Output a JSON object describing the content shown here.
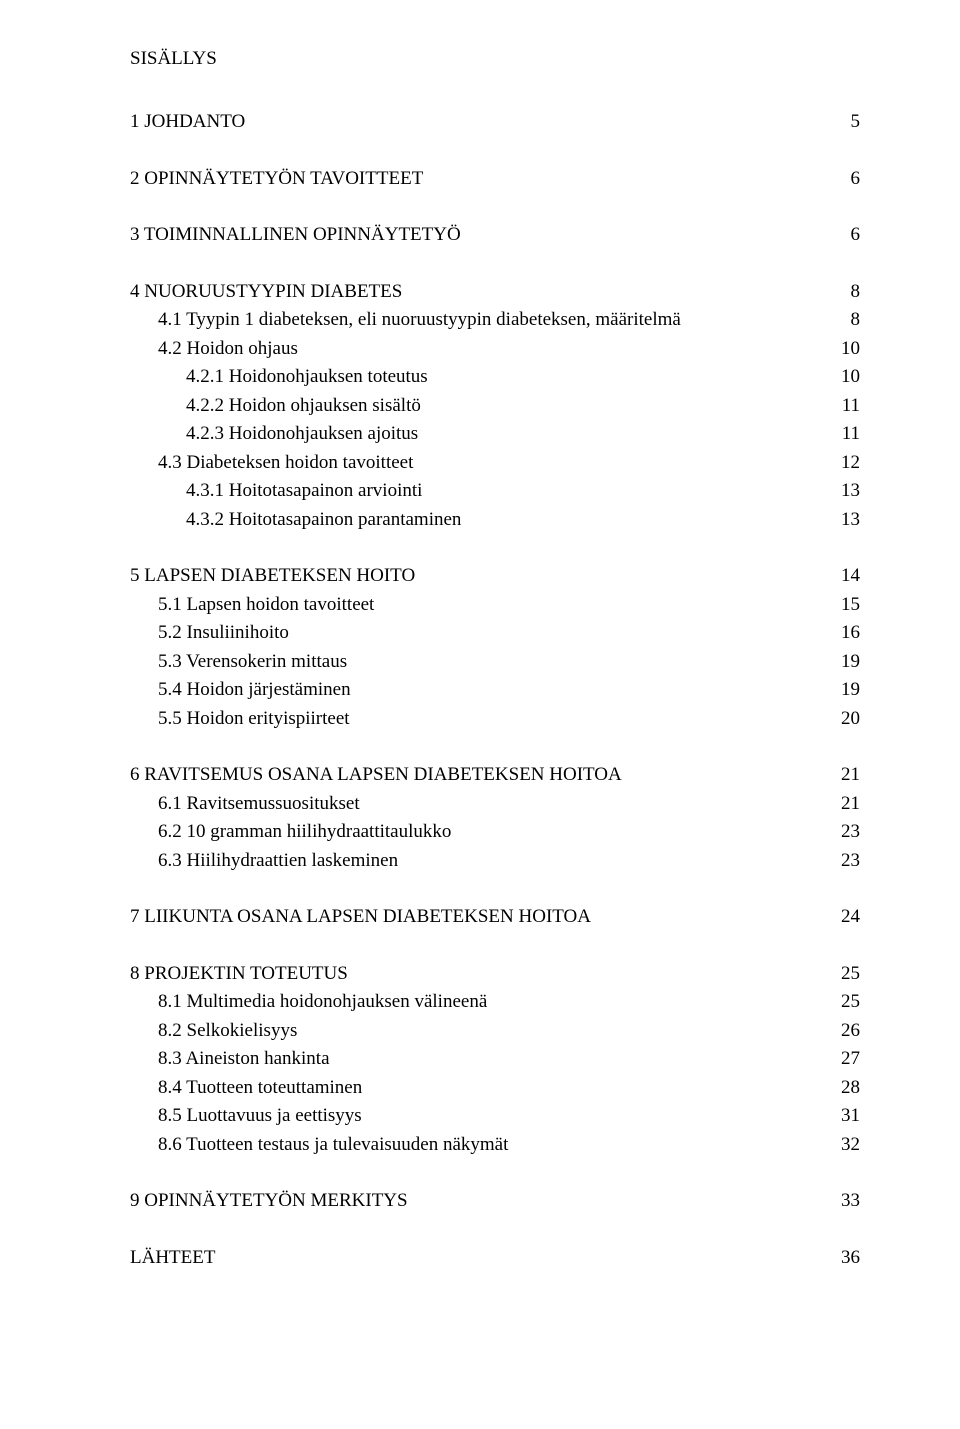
{
  "fontsize_pt": 19,
  "title": "SISÄLLYS",
  "toc": [
    {
      "label": "1 JOHDANTO",
      "page": "5",
      "indent": 0,
      "gap_before": false
    },
    {
      "label": "2 OPINNÄYTETYÖN TAVOITTEET",
      "page": "6",
      "indent": 0,
      "gap_before": true
    },
    {
      "label": "3 TOIMINNALLINEN OPINNÄYTETYÖ",
      "page": "6",
      "indent": 0,
      "gap_before": true
    },
    {
      "label": "4 NUORUUSTYYPIN DIABETES",
      "page": "8",
      "indent": 0,
      "gap_before": true
    },
    {
      "label": "4.1 Tyypin 1 diabeteksen, eli nuoruustyypin diabeteksen, määritelmä",
      "page": "8",
      "indent": 1,
      "gap_before": false
    },
    {
      "label": "4.2 Hoidon ohjaus",
      "page": "10",
      "indent": 1,
      "gap_before": false
    },
    {
      "label": "4.2.1 Hoidonohjauksen toteutus",
      "page": "10",
      "indent": 2,
      "gap_before": false
    },
    {
      "label": "4.2.2 Hoidon ohjauksen sisältö",
      "page": "11",
      "indent": 2,
      "gap_before": false
    },
    {
      "label": "4.2.3 Hoidonohjauksen ajoitus",
      "page": "11",
      "indent": 2,
      "gap_before": false
    },
    {
      "label": "4.3 Diabeteksen hoidon tavoitteet",
      "page": "12",
      "indent": 1,
      "gap_before": false
    },
    {
      "label": "4.3.1 Hoitotasapainon arviointi",
      "page": "13",
      "indent": 2,
      "gap_before": false
    },
    {
      "label": "4.3.2 Hoitotasapainon parantaminen",
      "page": "13",
      "indent": 2,
      "gap_before": false
    },
    {
      "label": "5 LAPSEN DIABETEKSEN HOITO",
      "page": "14",
      "indent": 0,
      "gap_before": true
    },
    {
      "label": "5.1 Lapsen hoidon tavoitteet",
      "page": "15",
      "indent": 1,
      "gap_before": false
    },
    {
      "label": "5.2 Insuliinihoito",
      "page": "16",
      "indent": 1,
      "gap_before": false
    },
    {
      "label": "5.3 Verensokerin mittaus",
      "page": "19",
      "indent": 1,
      "gap_before": false
    },
    {
      "label": "5.4 Hoidon järjestäminen",
      "page": "19",
      "indent": 1,
      "gap_before": false
    },
    {
      "label": "5.5 Hoidon erityispiirteet",
      "page": "20",
      "indent": 1,
      "gap_before": false
    },
    {
      "label": "6 RAVITSEMUS OSANA LAPSEN DIABETEKSEN HOITOA",
      "page": "21",
      "indent": 0,
      "gap_before": true
    },
    {
      "label": "6.1 Ravitsemussuositukset",
      "page": "21",
      "indent": 1,
      "gap_before": false
    },
    {
      "label": "6.2 10 gramman hiilihydraattitaulukko",
      "page": "23",
      "indent": 1,
      "gap_before": false
    },
    {
      "label": "6.3 Hiilihydraattien laskeminen",
      "page": "23",
      "indent": 1,
      "gap_before": false
    },
    {
      "label": "7 LIIKUNTA OSANA LAPSEN DIABETEKSEN HOITOA",
      "page": "24",
      "indent": 0,
      "gap_before": true
    },
    {
      "label": "8 PROJEKTIN TOTEUTUS",
      "page": "25",
      "indent": 0,
      "gap_before": true
    },
    {
      "label": "8.1 Multimedia hoidonohjauksen välineenä",
      "page": "25",
      "indent": 1,
      "gap_before": false
    },
    {
      "label": "8.2 Selkokielisyys",
      "page": "26",
      "indent": 1,
      "gap_before": false
    },
    {
      "label": "8.3 Aineiston hankinta",
      "page": "27",
      "indent": 1,
      "gap_before": false
    },
    {
      "label": "8.4 Tuotteen toteuttaminen",
      "page": "28",
      "indent": 1,
      "gap_before": false
    },
    {
      "label": "8.5 Luottavuus ja eettisyys",
      "page": "31",
      "indent": 1,
      "gap_before": false
    },
    {
      "label": "8.6 Tuotteen testaus ja tulevaisuuden näkymät",
      "page": "32",
      "indent": 1,
      "gap_before": false
    },
    {
      "label": "9 OPINNÄYTETYÖN MERKITYS",
      "page": "33",
      "indent": 0,
      "gap_before": true
    },
    {
      "label": "LÄHTEET",
      "page": "36",
      "indent": 0,
      "gap_before": true
    }
  ],
  "colors": {
    "background": "#ffffff",
    "text": "#000000"
  }
}
